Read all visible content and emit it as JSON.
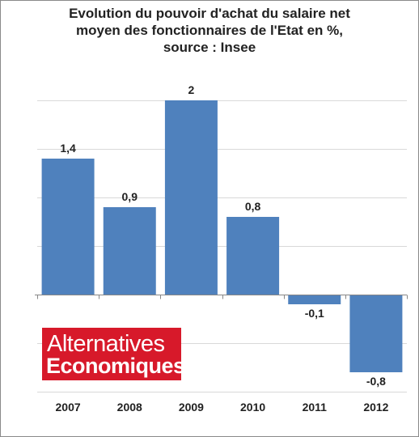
{
  "chart_data": {
    "type": "bar",
    "title_lines": [
      "Evolution du pouvoir d'achat du salaire net",
      "moyen des fonctionnaires de l'Etat en %,",
      "source : Insee"
    ],
    "categories": [
      "2007",
      "2008",
      "2009",
      "2010",
      "2011",
      "2012"
    ],
    "values": [
      1.4,
      0.9,
      2,
      0.8,
      -0.1,
      -0.8
    ],
    "value_labels": [
      "1,4",
      "0,9",
      "2",
      "0,8",
      "-0,1",
      "-0,8"
    ],
    "xlabel": "",
    "ylabel": "",
    "ylim": [
      -1,
      2
    ],
    "gridlines": [
      -1,
      -0.5,
      0,
      0.5,
      1,
      1.5,
      2
    ],
    "grid": true,
    "legend": "none",
    "bar_color": "#4f81bd",
    "grid_color": "#d9d9d9"
  },
  "logo": {
    "line1": "Alternatives",
    "line2": "Economiques",
    "color": "#d7192a"
  }
}
